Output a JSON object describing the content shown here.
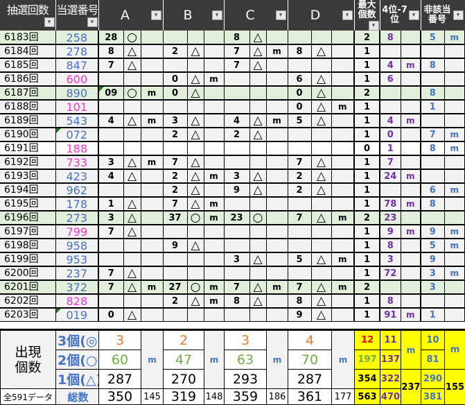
{
  "header": {
    "draw": "抽選回数",
    "number": "当選番号",
    "a": "A",
    "b": "B",
    "c": "C",
    "d": "D",
    "max": "最大個数",
    "p47": "4位-7位",
    "non": "非該当番号",
    "dropdown_icon": "▾"
  },
  "colors": {
    "blue": "#4472c4",
    "magenta": "#ff33cc",
    "purple": "#7030a0",
    "green_row": "#e2efda",
    "yellow": "#ffff00",
    "header": "#3a3a3a"
  },
  "rows": [
    {
      "bg": "g",
      "c": "blue",
      "cells": [
        "6183回",
        "258",
        "28",
        "○",
        "",
        "",
        "",
        "",
        "8",
        "△",
        "",
        "",
        "",
        "",
        "2",
        "8",
        "",
        "5",
        "m"
      ]
    },
    {
      "bg": "n",
      "c": "blue",
      "cells": [
        "6184回",
        "278",
        "8",
        "△",
        "",
        "2",
        "△",
        "",
        "7",
        "△",
        "m",
        "8",
        "△",
        "",
        "1",
        "",
        "",
        "",
        ""
      ]
    },
    {
      "bg": "n",
      "c": "blue",
      "cells": [
        "6185回",
        "847",
        "7",
        "△",
        "",
        "",
        "",
        "",
        "7",
        "△",
        "",
        "",
        "",
        "",
        "1",
        "4",
        "m",
        "8",
        ""
      ]
    },
    {
      "bg": "n",
      "c": "magenta",
      "cells": [
        "6186回",
        "600",
        "",
        "",
        "",
        "0",
        "△",
        "m",
        "",
        "",
        "",
        "6",
        "△",
        "",
        "1",
        "6",
        "",
        "",
        ""
      ]
    },
    {
      "bg": "g",
      "c": "blue",
      "mark": "a",
      "cells": [
        "6187回",
        "890",
        "09",
        "○",
        "m",
        "0",
        "△",
        "",
        "",
        "",
        "",
        "0",
        "△",
        "",
        "2",
        "",
        "",
        "8",
        ""
      ]
    },
    {
      "bg": "n",
      "c": "magenta",
      "cells": [
        "6188回",
        "101",
        "",
        "",
        "",
        "",
        "",
        "",
        "",
        "",
        "",
        "0",
        "△",
        "m",
        "1",
        "",
        "",
        "1",
        ""
      ]
    },
    {
      "bg": "n",
      "c": "blue",
      "cells": [
        "6189回",
        "543",
        "4",
        "△",
        "m",
        "3",
        "△",
        "",
        "4",
        "△",
        "m",
        "5",
        "△",
        "",
        "1",
        "4",
        "m",
        "",
        ""
      ]
    },
    {
      "bg": "n",
      "c": "blue",
      "mark": "num",
      "cells": [
        "6190回",
        "072",
        "",
        "",
        "",
        "2",
        "△",
        "",
        "2",
        "△",
        "",
        "",
        "",
        "",
        "1",
        "0",
        "",
        "7",
        "m"
      ]
    },
    {
      "bg": "w",
      "c": "magenta",
      "cells": [
        "6191回",
        "188",
        "",
        "",
        "",
        "",
        "",
        "",
        "",
        "",
        "",
        "",
        "",
        "",
        "0",
        "1",
        "",
        "8",
        "m"
      ]
    },
    {
      "bg": "n",
      "c": "magenta",
      "cells": [
        "6192回",
        "733",
        "3",
        "△",
        "m",
        "7",
        "△",
        "",
        "",
        "",
        "",
        "7",
        "△",
        "",
        "1",
        "7",
        "",
        "",
        ""
      ]
    },
    {
      "bg": "n",
      "c": "blue",
      "cells": [
        "6193回",
        "423",
        "4",
        "△",
        "",
        "2",
        "△",
        "m",
        "3",
        "△",
        "",
        "2",
        "△",
        "",
        "1",
        "24",
        "m",
        "",
        ""
      ]
    },
    {
      "bg": "n",
      "c": "blue",
      "cells": [
        "6194回",
        "962",
        "",
        "",
        "",
        "2",
        "△",
        "",
        "9",
        "△",
        "",
        "2",
        "△",
        "",
        "1",
        "",
        "",
        "6",
        "m"
      ]
    },
    {
      "bg": "n",
      "c": "blue",
      "cells": [
        "6195回",
        "178",
        "1",
        "△",
        "",
        "7",
        "△",
        "m",
        "",
        "",
        "",
        "",
        "",
        "",
        "1",
        "78",
        "m",
        "8",
        ""
      ]
    },
    {
      "bg": "g",
      "c": "blue",
      "cells": [
        "6196回",
        "273",
        "3",
        "△",
        "",
        "37",
        "○",
        "m",
        "23",
        "○",
        "",
        "7",
        "△",
        "m",
        "2",
        "23",
        "",
        "",
        ""
      ]
    },
    {
      "bg": "n",
      "c": "magenta",
      "cells": [
        "6197回",
        "799",
        "7",
        "△",
        "",
        "",
        "",
        "",
        "",
        "",
        "",
        "",
        "",
        "",
        "1",
        "9",
        "m",
        "9",
        "m"
      ]
    },
    {
      "bg": "n",
      "c": "blue",
      "cells": [
        "6198回",
        "958",
        "",
        "",
        "",
        "9",
        "△",
        "",
        "",
        "",
        "",
        "",
        "",
        "",
        "1",
        "8",
        "",
        "5",
        "m"
      ]
    },
    {
      "bg": "n",
      "c": "blue",
      "cells": [
        "6199回",
        "953",
        "",
        "",
        "",
        "",
        "",
        "",
        "3",
        "△",
        "",
        "5",
        "△",
        "m",
        "1",
        "3",
        "",
        "9",
        ""
      ]
    },
    {
      "bg": "n",
      "c": "blue",
      "cells": [
        "6200回",
        "237",
        "7",
        "△",
        "",
        "",
        "",
        "",
        "",
        "",
        "",
        "",
        "",
        "",
        "1",
        "72",
        "",
        "3",
        "m"
      ]
    },
    {
      "bg": "g",
      "c": "blue",
      "cells": [
        "6201回",
        "372",
        "7",
        "△",
        "m",
        "27",
        "○",
        "m",
        "7",
        "△",
        "m",
        "7",
        "△",
        "m",
        "2",
        "",
        "",
        "3",
        ""
      ]
    },
    {
      "bg": "n",
      "c": "magenta",
      "cells": [
        "6202回",
        "828",
        "",
        "",
        "",
        "2",
        "△",
        "m",
        "8",
        "△",
        "",
        "8",
        "△",
        "",
        "1",
        "8",
        "",
        "",
        ""
      ]
    },
    {
      "bg": "n",
      "c": "blue",
      "mark": "num",
      "cells": [
        "6203回",
        "019",
        "0",
        "△",
        "",
        "",
        "",
        "",
        "",
        "",
        "",
        "9",
        "△",
        "",
        "1",
        "91",
        "m",
        "1",
        ""
      ]
    }
  ],
  "summary": {
    "label": "出現個数",
    "row_labels": [
      "3個(◎)",
      "2個(○)",
      "1個(△)"
    ],
    "total_left": "全591データ",
    "total_label": "総数",
    "m": "m",
    "groups": [
      {
        "v3": "3",
        "v2": "60",
        "v1": "287",
        "total": "350",
        "m_total": "145"
      },
      {
        "v3": "2",
        "v2": "47",
        "v1": "270",
        "total": "319",
        "m_total": "148"
      },
      {
        "v3": "3",
        "v2": "63",
        "v1": "293",
        "total": "359",
        "m_total": "186"
      },
      {
        "v3": "4",
        "v2": "70",
        "v1": "287",
        "total": "361",
        "m_total": "177"
      }
    ],
    "max_col": [
      "12",
      "197",
      "354",
      "563"
    ],
    "p47_col": [
      "11",
      "137",
      "322",
      "470"
    ],
    "p47_m_total": "237",
    "non_col": [
      "10",
      "81",
      "290",
      "381"
    ],
    "non_m_total": "155"
  }
}
